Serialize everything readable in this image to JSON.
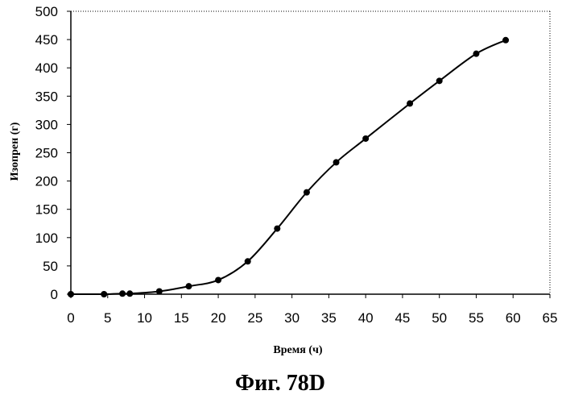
{
  "chart_data": {
    "type": "line",
    "xlabel": "Время (ч)",
    "ylabel": "Изопрен (г)",
    "caption": "Фиг. 78D",
    "xlim": [
      0,
      65
    ],
    "ylim": [
      0,
      500
    ],
    "x_ticks": [
      0,
      5,
      10,
      15,
      20,
      25,
      30,
      35,
      40,
      45,
      50,
      55,
      60,
      65
    ],
    "y_ticks": [
      0,
      50,
      100,
      150,
      200,
      250,
      300,
      350,
      400,
      450,
      500
    ],
    "grid": false,
    "legend": "none",
    "series": [
      {
        "color": "#000000",
        "marker": "circle",
        "x": [
          0,
          4.5,
          7,
          8,
          12,
          16,
          20,
          24,
          28,
          32,
          36,
          40,
          46,
          50,
          55,
          59
        ],
        "y": [
          0,
          0,
          1,
          1,
          5,
          14,
          25,
          58,
          116,
          180,
          233,
          275,
          337,
          377,
          425,
          449
        ]
      }
    ]
  }
}
